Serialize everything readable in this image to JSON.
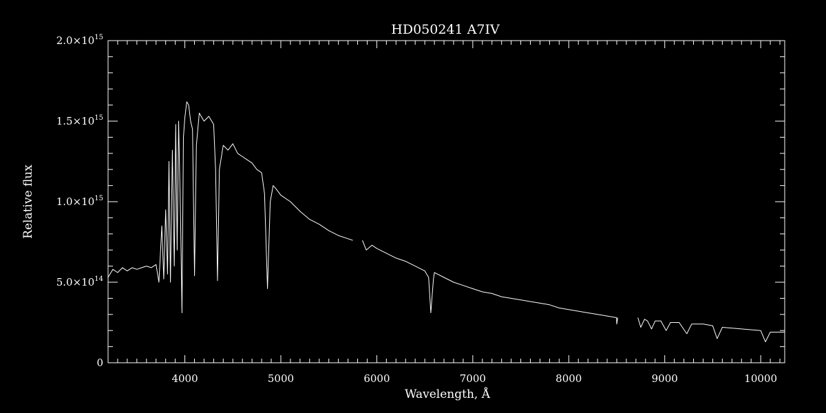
{
  "chart_data": {
    "type": "line",
    "title": "HD050241   A7IV",
    "xlabel": "Wavelength, Å",
    "ylabel": "Relative flux",
    "xlim": [
      3200,
      10250
    ],
    "ylim": [
      0,
      2000000000000000.0
    ],
    "x_ticks": [
      {
        "value": 4000,
        "label": "4000"
      },
      {
        "value": 5000,
        "label": "5000"
      },
      {
        "value": 6000,
        "label": "6000"
      },
      {
        "value": 7000,
        "label": "7000"
      },
      {
        "value": 8000,
        "label": "8000"
      },
      {
        "value": 9000,
        "label": "9000"
      },
      {
        "value": 10000,
        "label": "10000"
      }
    ],
    "y_ticks": [
      {
        "value": 0,
        "mant": "0",
        "exp": ""
      },
      {
        "value": 500000000000000.0,
        "mant": "5.0×10",
        "exp": "14"
      },
      {
        "value": 1000000000000000.0,
        "mant": "1.0×10",
        "exp": "15"
      },
      {
        "value": 1500000000000000.0,
        "mant": "1.5×10",
        "exp": "15"
      },
      {
        "value": 2000000000000000.0,
        "mant": "2.0×10",
        "exp": "15"
      }
    ],
    "minor_x_step": 100,
    "minor_y_step": 100000000000000.0,
    "grid": false,
    "colors": {
      "background": "#000000",
      "line": "#ffffff"
    },
    "series": [
      {
        "segments": [
          [
            [
              3200,
              530000000000000.0
            ],
            [
              3250,
              580000000000000.0
            ],
            [
              3300,
              560000000000000.0
            ],
            [
              3350,
              590000000000000.0
            ],
            [
              3400,
              570000000000000.0
            ],
            [
              3450,
              590000000000000.0
            ],
            [
              3500,
              580000000000000.0
            ],
            [
              3550,
              590000000000000.0
            ],
            [
              3600,
              600000000000000.0
            ],
            [
              3650,
              590000000000000.0
            ],
            [
              3700,
              610000000000000.0
            ],
            [
              3730,
              500000000000000.0
            ],
            [
              3760,
              850000000000000.0
            ],
            [
              3780,
              520000000000000.0
            ],
            [
              3800,
              950000000000000.0
            ],
            [
              3820,
              550000000000000.0
            ],
            [
              3835,
              1250000000000000.0
            ],
            [
              3850,
              500000000000000.0
            ],
            [
              3870,
              1320000000000000.0
            ],
            [
              3890,
              600000000000000.0
            ],
            [
              3905,
              1480000000000000.0
            ],
            [
              3920,
              700000000000000.0
            ],
            [
              3935,
              1500000000000000.0
            ],
            [
              3955,
              900000000000000.0
            ],
            [
              3970,
              310000000000000.0
            ],
            [
              3985,
              1400000000000000.0
            ],
            [
              4000,
              1520000000000000.0
            ],
            [
              4020,
              1620000000000000.0
            ],
            [
              4040,
              1600000000000000.0
            ],
            [
              4060,
              1500000000000000.0
            ],
            [
              4080,
              1450000000000000.0
            ],
            [
              4101,
              540000000000000.0
            ],
            [
              4120,
              1350000000000000.0
            ],
            [
              4150,
              1550000000000000.0
            ],
            [
              4200,
              1500000000000000.0
            ],
            [
              4250,
              1530000000000000.0
            ],
            [
              4300,
              1480000000000000.0
            ],
            [
              4320,
              1200000000000000.0
            ],
            [
              4340,
              510000000000000.0
            ],
            [
              4360,
              1200000000000000.0
            ],
            [
              4400,
              1350000000000000.0
            ],
            [
              4450,
              1320000000000000.0
            ],
            [
              4500,
              1360000000000000.0
            ],
            [
              4550,
              1300000000000000.0
            ],
            [
              4600,
              1280000000000000.0
            ],
            [
              4650,
              1260000000000000.0
            ],
            [
              4700,
              1240000000000000.0
            ],
            [
              4750,
              1200000000000000.0
            ],
            [
              4800,
              1180000000000000.0
            ],
            [
              4830,
              1050000000000000.0
            ],
            [
              4861,
              460000000000000.0
            ],
            [
              4890,
              1000000000000000.0
            ],
            [
              4920,
              1100000000000000.0
            ],
            [
              4950,
              1080000000000000.0
            ],
            [
              5000,
              1040000000000000.0
            ],
            [
              5100,
              1000000000000000.0
            ],
            [
              5200,
              940000000000000.0
            ],
            [
              5300,
              890000000000000.0
            ],
            [
              5400,
              860000000000000.0
            ],
            [
              5500,
              820000000000000.0
            ],
            [
              5600,
              790000000000000.0
            ],
            [
              5700,
              770000000000000.0
            ],
            [
              5750,
              760000000000000.0
            ]
          ],
          [
            [
              5850,
              760000000000000.0
            ],
            [
              5890,
              700000000000000.0
            ],
            [
              5950,
              730000000000000.0
            ],
            [
              6000,
              710000000000000.0
            ],
            [
              6100,
              680000000000000.0
            ],
            [
              6200,
              650000000000000.0
            ],
            [
              6300,
              630000000000000.0
            ],
            [
              6400,
              600000000000000.0
            ],
            [
              6500,
              570000000000000.0
            ],
            [
              6540,
              530000000000000.0
            ],
            [
              6563,
              310000000000000.0
            ],
            [
              6590,
              520000000000000.0
            ],
            [
              6600,
              560000000000000.0
            ],
            [
              6700,
              530000000000000.0
            ],
            [
              6800,
              500000000000000.0
            ],
            [
              6900,
              480000000000000.0
            ],
            [
              7000,
              460000000000000.0
            ],
            [
              7100,
              440000000000000.0
            ],
            [
              7200,
              430000000000000.0
            ],
            [
              7300,
              410000000000000.0
            ],
            [
              7400,
              400000000000000.0
            ],
            [
              7500,
              390000000000000.0
            ],
            [
              7600,
              380000000000000.0
            ],
            [
              7700,
              370000000000000.0
            ],
            [
              7800,
              360000000000000.0
            ],
            [
              7900,
              340000000000000.0
            ],
            [
              8000,
              330000000000000.0
            ],
            [
              8100,
              320000000000000.0
            ],
            [
              8200,
              310000000000000.0
            ],
            [
              8300,
              300000000000000.0
            ],
            [
              8400,
              290000000000000.0
            ],
            [
              8498,
              280000000000000.0
            ],
            [
              8500,
              240000000000000.0
            ],
            [
              8510,
              280000000000000.0
            ]
          ],
          [
            [
              8720,
              280000000000000.0
            ],
            [
              8750,
              220000000000000.0
            ],
            [
              8790,
              270000000000000.0
            ],
            [
              8820,
              260000000000000.0
            ],
            [
              8863,
              210000000000000.0
            ],
            [
              8900,
              260000000000000.0
            ],
            [
              8960,
              260000000000000.0
            ],
            [
              9015,
              200000000000000.0
            ],
            [
              9060,
              250000000000000.0
            ],
            [
              9150,
              250000000000000.0
            ],
            [
              9230,
              180000000000000.0
            ],
            [
              9280,
              240000000000000.0
            ],
            [
              9400,
              240000000000000.0
            ],
            [
              9500,
              230000000000000.0
            ],
            [
              9546,
              150000000000000.0
            ],
            [
              9600,
              220000000000000.0
            ],
            [
              9800,
              210000000000000.0
            ],
            [
              10000,
              200000000000000.0
            ],
            [
              10049,
              130000000000000.0
            ],
            [
              10100,
              190000000000000.0
            ],
            [
              10250,
              190000000000000.0
            ]
          ]
        ]
      }
    ]
  }
}
